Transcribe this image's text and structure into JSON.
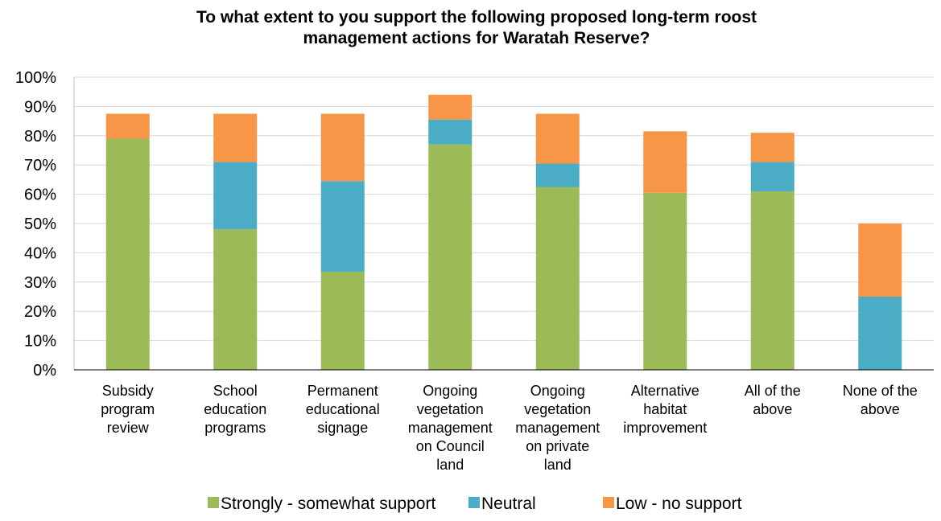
{
  "chart_data": {
    "type": "bar",
    "stacked": true,
    "title": "To what extent to you support the following proposed long-term roost management actions for Waratah Reserve?",
    "categories": [
      "Subsidy program review",
      "School education programs",
      "Permanent educational signage",
      "Ongoing vegetation management on Council land",
      "Ongoing vegetation management on private land",
      "Alternative habitat improvement",
      "All of the above",
      "None of the above"
    ],
    "category_lines": [
      [
        "Subsidy",
        "program",
        "review"
      ],
      [
        "School",
        "education",
        "programs"
      ],
      [
        "Permanent",
        "educational",
        "signage"
      ],
      [
        "Ongoing",
        "vegetation",
        "management",
        "on Council",
        "land"
      ],
      [
        "Ongoing",
        "vegetation",
        "management",
        "on private",
        "land"
      ],
      [
        "Alternative",
        "habitat",
        "improvement"
      ],
      [
        "All of the",
        "above"
      ],
      [
        "None of the",
        "above"
      ]
    ],
    "series": [
      {
        "name": "Strongly - somewhat support",
        "color": "#9BBB59",
        "values": [
          79,
          48,
          33.5,
          77,
          62.5,
          60.5,
          61,
          0
        ]
      },
      {
        "name": "Neutral",
        "color": "#4BACC6",
        "values": [
          0,
          23,
          31,
          8.5,
          8,
          0,
          10,
          25
        ]
      },
      {
        "name": "Low - no support",
        "color": "#F79646",
        "values": [
          8.5,
          16.5,
          23,
          8.5,
          17,
          21,
          10,
          25
        ]
      }
    ],
    "ylim": [
      0,
      100
    ],
    "y_ticks": [
      "0%",
      "10%",
      "20%",
      "30%",
      "40%",
      "50%",
      "60%",
      "70%",
      "80%",
      "90%",
      "100%"
    ],
    "grid": true,
    "legend_position": "bottom",
    "xlabel": "",
    "ylabel": ""
  }
}
